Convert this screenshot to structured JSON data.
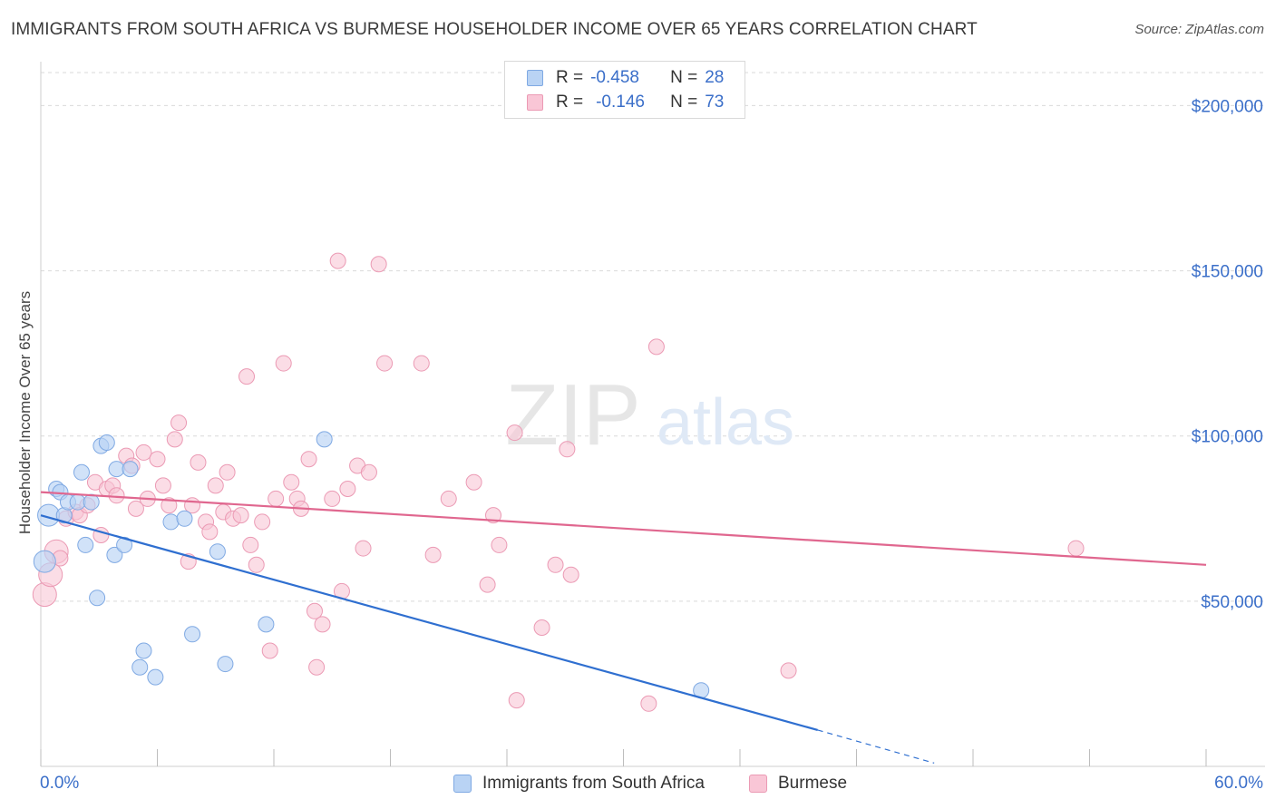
{
  "title": "IMMIGRANTS FROM SOUTH AFRICA VS BURMESE HOUSEHOLDER INCOME OVER 65 YEARS CORRELATION CHART",
  "source": "Source: ZipAtlas.com",
  "watermark": {
    "zip": "ZIP",
    "atlas": "atlas"
  },
  "legend": {
    "rows": [
      {
        "r_label": "R =",
        "r_value": "-0.458",
        "n_label": "N =",
        "n_value": "28"
      },
      {
        "r_label": "R =",
        "r_value": "-0.146",
        "n_label": "N =",
        "n_value": "73"
      }
    ]
  },
  "colors": {
    "blue_fill": "#b9d3f4",
    "blue_stroke": "#7fa9e3",
    "blue_line": "#2f6fd0",
    "pink_fill": "#f9c6d6",
    "pink_stroke": "#eb9ab4",
    "pink_line": "#e0678f",
    "tick_text": "#3b6fc9",
    "grid": "#d9d9d9"
  },
  "chart_data": {
    "type": "scatter",
    "title": "IMMIGRANTS FROM SOUTH AFRICA VS BURMESE HOUSEHOLDER INCOME OVER 65 YEARS CORRELATION CHART",
    "xlabel": "",
    "ylabel": "Householder Income Over 65 years",
    "xlim": [
      0,
      60
    ],
    "ylim": [
      0,
      210000
    ],
    "x_tick_labels": [
      "0.0%",
      "60.0%"
    ],
    "y_ticks": [
      50000,
      100000,
      150000,
      200000
    ],
    "y_tick_labels": [
      "$50,000",
      "$100,000",
      "$150,000",
      "$200,000"
    ],
    "grid": true,
    "legend_position": "top-center",
    "series": [
      {
        "name": "Immigrants from South Africa",
        "color": "#b9d3f4",
        "points": [
          [
            0.2,
            62000
          ],
          [
            0.4,
            76000
          ],
          [
            0.8,
            84000
          ],
          [
            1.0,
            83000
          ],
          [
            1.2,
            76000
          ],
          [
            1.4,
            80000
          ],
          [
            1.9,
            80000
          ],
          [
            2.1,
            89000
          ],
          [
            2.3,
            67000
          ],
          [
            2.6,
            80000
          ],
          [
            3.1,
            97000
          ],
          [
            3.4,
            98000
          ],
          [
            3.8,
            64000
          ],
          [
            3.9,
            90000
          ],
          [
            4.3,
            67000
          ],
          [
            4.6,
            90000
          ],
          [
            2.9,
            51000
          ],
          [
            5.3,
            35000
          ],
          [
            5.1,
            30000
          ],
          [
            5.9,
            27000
          ],
          [
            6.7,
            74000
          ],
          [
            7.4,
            75000
          ],
          [
            7.8,
            40000
          ],
          [
            9.1,
            65000
          ],
          [
            9.5,
            31000
          ],
          [
            11.6,
            43000
          ],
          [
            14.6,
            99000
          ],
          [
            34.0,
            23000
          ]
        ],
        "trend": {
          "x": [
            0,
            40
          ],
          "y": [
            76000,
            11000
          ],
          "dashed_to": [
            46,
            1000
          ]
        }
      },
      {
        "name": "Burmese",
        "color": "#f9c6d6",
        "points": [
          [
            0.2,
            52000
          ],
          [
            0.5,
            58000
          ],
          [
            0.8,
            65000
          ],
          [
            1.0,
            63000
          ],
          [
            1.3,
            75000
          ],
          [
            1.8,
            77000
          ],
          [
            2.0,
            76000
          ],
          [
            2.4,
            79000
          ],
          [
            2.8,
            86000
          ],
          [
            3.1,
            70000
          ],
          [
            3.4,
            84000
          ],
          [
            3.7,
            85000
          ],
          [
            3.9,
            82000
          ],
          [
            4.4,
            94000
          ],
          [
            4.7,
            91000
          ],
          [
            4.9,
            78000
          ],
          [
            5.3,
            95000
          ],
          [
            5.5,
            81000
          ],
          [
            6.0,
            93000
          ],
          [
            6.3,
            85000
          ],
          [
            6.6,
            79000
          ],
          [
            6.9,
            99000
          ],
          [
            7.1,
            104000
          ],
          [
            7.6,
            62000
          ],
          [
            7.8,
            79000
          ],
          [
            8.1,
            92000
          ],
          [
            8.5,
            74000
          ],
          [
            8.7,
            71000
          ],
          [
            9.0,
            85000
          ],
          [
            9.4,
            77000
          ],
          [
            9.6,
            89000
          ],
          [
            9.9,
            75000
          ],
          [
            10.3,
            76000
          ],
          [
            10.6,
            118000
          ],
          [
            10.8,
            67000
          ],
          [
            11.1,
            61000
          ],
          [
            11.4,
            74000
          ],
          [
            11.8,
            35000
          ],
          [
            12.1,
            81000
          ],
          [
            12.5,
            122000
          ],
          [
            12.9,
            86000
          ],
          [
            13.2,
            81000
          ],
          [
            13.4,
            78000
          ],
          [
            13.8,
            93000
          ],
          [
            14.1,
            47000
          ],
          [
            14.2,
            30000
          ],
          [
            14.5,
            43000
          ],
          [
            15.0,
            81000
          ],
          [
            15.3,
            153000
          ],
          [
            15.5,
            53000
          ],
          [
            15.8,
            84000
          ],
          [
            16.3,
            91000
          ],
          [
            16.6,
            66000
          ],
          [
            16.9,
            89000
          ],
          [
            17.4,
            152000
          ],
          [
            17.7,
            122000
          ],
          [
            19.6,
            122000
          ],
          [
            20.2,
            64000
          ],
          [
            21.0,
            81000
          ],
          [
            22.3,
            86000
          ],
          [
            23.0,
            55000
          ],
          [
            23.3,
            76000
          ],
          [
            23.6,
            67000
          ],
          [
            24.4,
            101000
          ],
          [
            24.5,
            20000
          ],
          [
            25.8,
            42000
          ],
          [
            26.5,
            61000
          ],
          [
            27.1,
            96000
          ],
          [
            27.3,
            58000
          ],
          [
            31.3,
            19000
          ],
          [
            31.7,
            127000
          ],
          [
            38.5,
            29000
          ],
          [
            53.3,
            66000
          ]
        ],
        "trend": {
          "x": [
            0,
            60
          ],
          "y": [
            83000,
            61000
          ]
        }
      }
    ]
  }
}
